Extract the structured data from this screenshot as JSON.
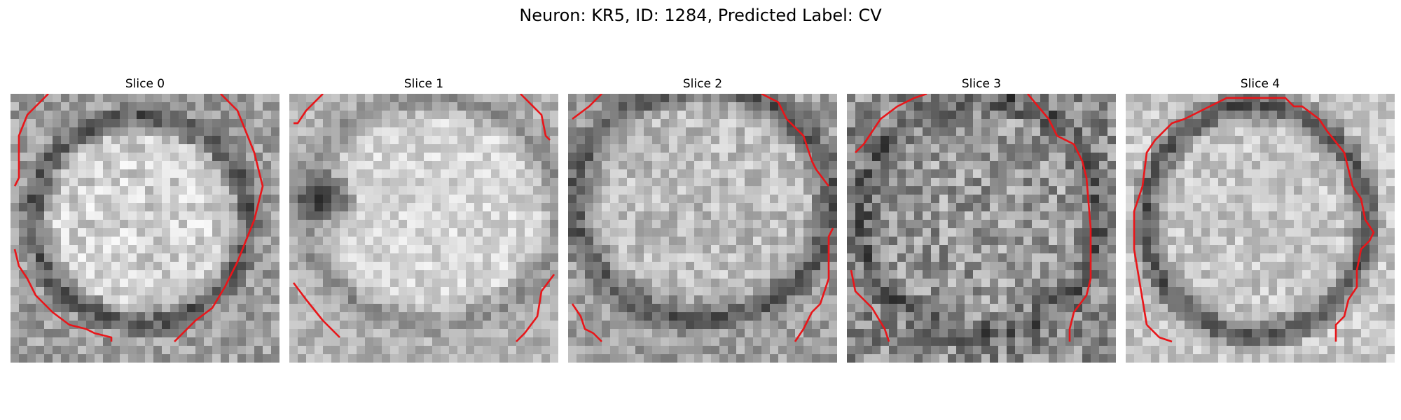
{
  "figure": {
    "title": "Neuron: KR5, ID: 1284, Predicted Label: CV"
  },
  "colors": {
    "contour": "#e8161a",
    "colormap": "gray"
  },
  "panels": [
    {
      "title": "Slice 0"
    },
    {
      "title": "Slice 1"
    },
    {
      "title": "Slice 2"
    },
    {
      "title": "Slice 3"
    },
    {
      "title": "Slice 4"
    }
  ]
}
